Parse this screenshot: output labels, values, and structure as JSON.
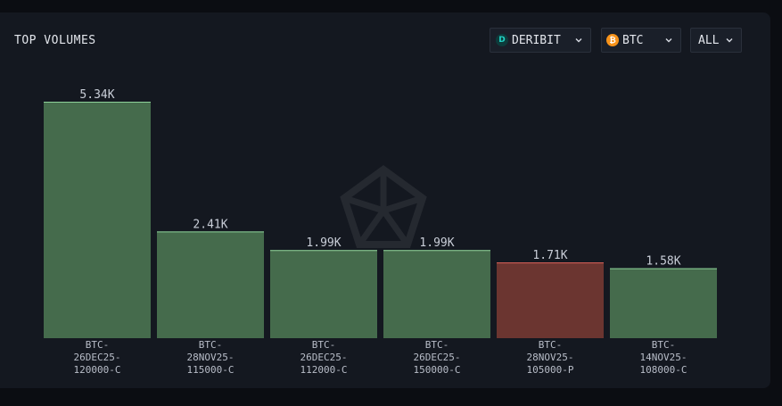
{
  "header": {
    "title": "TOP VOLUMES"
  },
  "filters": {
    "exchange": {
      "label": "DERIBIT",
      "icon": "deribit-icon"
    },
    "asset": {
      "label": "BTC",
      "icon": "bitcoin-icon"
    },
    "range": {
      "label": "ALL"
    }
  },
  "colors": {
    "call": "#456b4c",
    "call_edge": "#8fd39a",
    "put": "#6b3530",
    "put_edge": "#d9625a"
  },
  "chart_data": {
    "type": "bar",
    "title": "TOP VOLUMES",
    "categories": [
      "BTC-26DEC25-120000-C",
      "BTC-28NOV25-115000-C",
      "BTC-26DEC25-112000-C",
      "BTC-26DEC25-150000-C",
      "BTC-28NOV25-105000-P",
      "BTC-14NOV25-108000-C"
    ],
    "category_lines": [
      [
        "BTC-",
        "26DEC25-",
        "120000-C"
      ],
      [
        "BTC-",
        "28NOV25-",
        "115000-C"
      ],
      [
        "BTC-",
        "26DEC25-",
        "112000-C"
      ],
      [
        "BTC-",
        "26DEC25-",
        "150000-C"
      ],
      [
        "BTC-",
        "28NOV25-",
        "105000-P"
      ],
      [
        "BTC-",
        "14NOV25-",
        "108000-C"
      ]
    ],
    "values": [
      5340,
      2410,
      1990,
      1990,
      1710,
      1580
    ],
    "value_labels": [
      "5.34K",
      "2.41K",
      "1.99K",
      "1.99K",
      "1.71K",
      "1.58K"
    ],
    "option_type": [
      "call",
      "call",
      "call",
      "call",
      "put",
      "call"
    ],
    "grid": false,
    "legend": "none"
  }
}
